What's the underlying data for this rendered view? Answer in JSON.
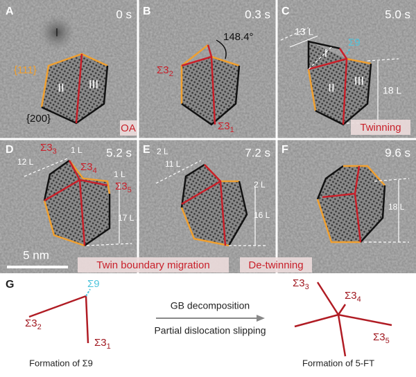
{
  "panels": [
    {
      "letter": "A",
      "time": "0 s",
      "grains": [
        "I",
        "II",
        "III"
      ],
      "facet_111": "{111}",
      "facet_200": "{200}",
      "caption": "OA"
    },
    {
      "letter": "B",
      "time": "0.3 s",
      "angle": "148.4°",
      "boundaries": [
        {
          "base": "Σ3",
          "sub": "2"
        },
        {
          "base": "Σ3",
          "sub": "1"
        }
      ]
    },
    {
      "letter": "C",
      "time": "5.0 s",
      "grains": [
        "I",
        "II",
        "III"
      ],
      "boundary": "Σ9",
      "lengths": [
        "13 L",
        "18 L"
      ],
      "caption": "Twinning"
    },
    {
      "letter": "D",
      "time": "5.2 s",
      "boundaries": [
        {
          "base": "Σ3",
          "sub": "3"
        },
        {
          "base": "Σ3",
          "sub": "4"
        },
        {
          "base": "Σ3",
          "sub": "5"
        }
      ],
      "lengths": [
        "1 L",
        "12 L",
        "1 L",
        "17 L"
      ]
    },
    {
      "letter": "E",
      "time": "7.2 s",
      "lengths": [
        "2 L",
        "11 L",
        "2 L",
        "16 L"
      ]
    },
    {
      "letter": "F",
      "time": "9.6 s",
      "lengths": [
        "18 L"
      ]
    }
  ],
  "scale_bar": "5 nm",
  "captions": [
    "Twin boundary migration",
    "De-twinning"
  ],
  "schematic": {
    "letter": "G",
    "left": {
      "boundaries": [
        "Σ9",
        {
          "base": "Σ3",
          "sub": "2"
        },
        {
          "base": "Σ3",
          "sub": "1"
        }
      ],
      "caption": "Formation of Σ9"
    },
    "arrow": {
      "top": "GB decomposition",
      "bottom": "Partial dislocation slipping"
    },
    "right": {
      "boundaries": [
        {
          "base": "Σ3",
          "sub": "3"
        },
        {
          "base": "Σ3",
          "sub": "4"
        },
        {
          "base": "Σ3",
          "sub": "5"
        }
      ],
      "caption": "Formation of 5-FT"
    }
  }
}
